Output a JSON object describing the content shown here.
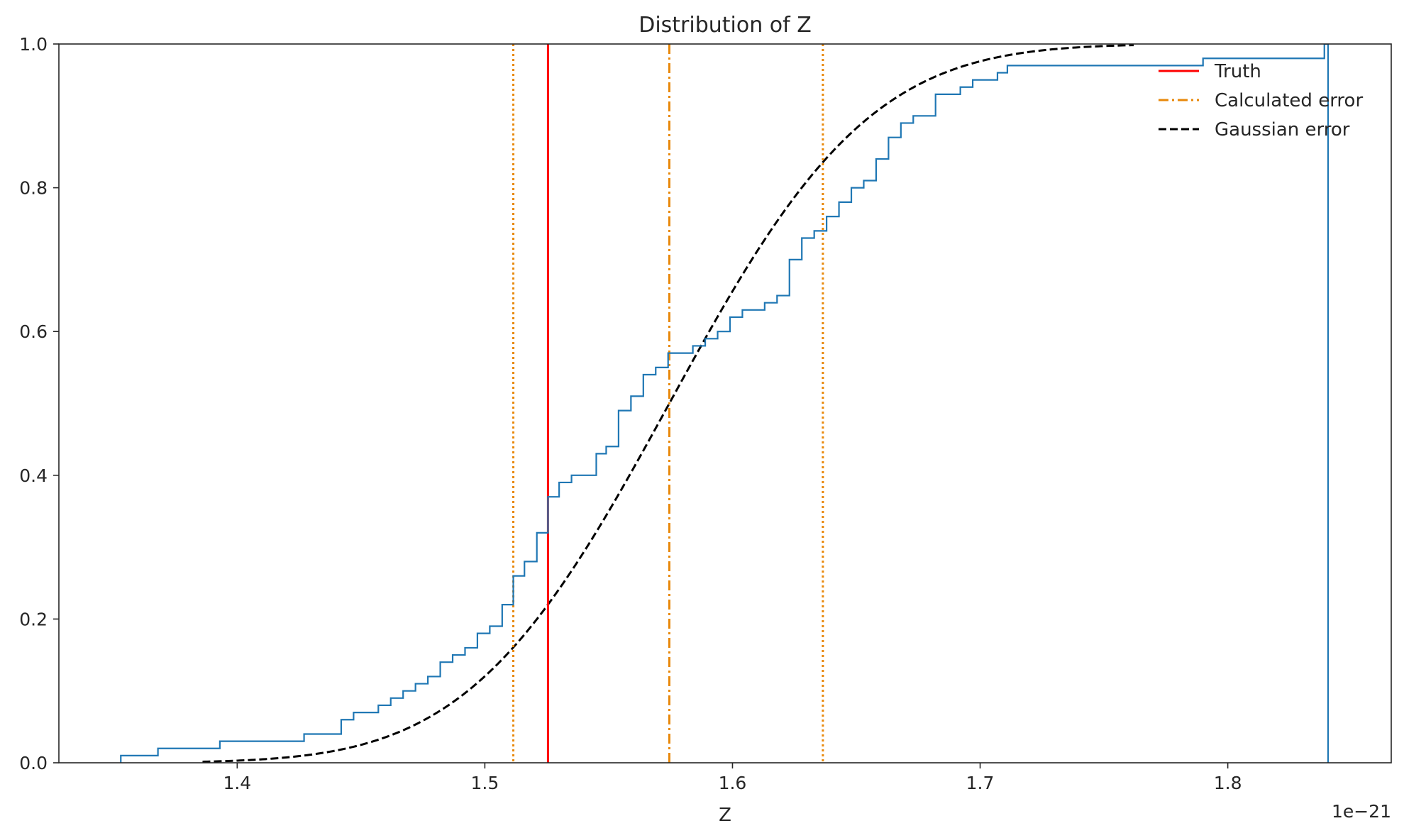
{
  "chart_data": {
    "type": "line",
    "title": "Distribution of Z",
    "xlabel": "Z",
    "ylabel": "",
    "x_offset_label": "1e−21",
    "xlim": [
      1.328,
      1.866
    ],
    "ylim": [
      0,
      1
    ],
    "xticks": [
      1.4,
      1.5,
      1.6,
      1.7,
      1.8
    ],
    "xtick_labels": [
      "1.4",
      "1.5",
      "1.6",
      "1.7",
      "1.8"
    ],
    "yticks": [
      0.0,
      0.2,
      0.4,
      0.6,
      0.8,
      1.0
    ],
    "ytick_labels": [
      "0.0",
      "0.2",
      "0.4",
      "0.6",
      "0.8",
      "1.0"
    ],
    "grid": false,
    "legend_position": "top-right",
    "legend": [
      {
        "label": "Truth",
        "color": "#ff0000",
        "style": "solid"
      },
      {
        "label": "Calculated error",
        "color": "#e8880a",
        "style": "dashdot"
      },
      {
        "label": "Gaussian error",
        "color": "#000000",
        "style": "dashed"
      }
    ],
    "truth": 1.5255,
    "calculated_mean": 1.5745,
    "calculated_interval": [
      1.5115,
      1.6365
    ],
    "gaussian_mu": 1.5745,
    "gaussian_sigma": 0.0635,
    "gaussian_x_range": [
      1.386,
      1.762
    ],
    "ecdf": {
      "color": "#1f77b4",
      "steps": [
        [
          1.353,
          0.01
        ],
        [
          1.368,
          0.02
        ],
        [
          1.393,
          0.03
        ],
        [
          1.427,
          0.04
        ],
        [
          1.442,
          0.06
        ],
        [
          1.447,
          0.07
        ],
        [
          1.457,
          0.08
        ],
        [
          1.462,
          0.09
        ],
        [
          1.467,
          0.1
        ],
        [
          1.472,
          0.11
        ],
        [
          1.477,
          0.12
        ],
        [
          1.482,
          0.14
        ],
        [
          1.487,
          0.15
        ],
        [
          1.492,
          0.16
        ],
        [
          1.497,
          0.18
        ],
        [
          1.502,
          0.19
        ],
        [
          1.507,
          0.22
        ],
        [
          1.5115,
          0.26
        ],
        [
          1.516,
          0.28
        ],
        [
          1.521,
          0.32
        ],
        [
          1.5255,
          0.37
        ],
        [
          1.53,
          0.39
        ],
        [
          1.535,
          0.4
        ],
        [
          1.545,
          0.43
        ],
        [
          1.549,
          0.44
        ],
        [
          1.554,
          0.49
        ],
        [
          1.559,
          0.51
        ],
        [
          1.564,
          0.54
        ],
        [
          1.569,
          0.55
        ],
        [
          1.574,
          0.57
        ],
        [
          1.584,
          0.58
        ],
        [
          1.589,
          0.59
        ],
        [
          1.594,
          0.6
        ],
        [
          1.599,
          0.62
        ],
        [
          1.604,
          0.63
        ],
        [
          1.613,
          0.64
        ],
        [
          1.618,
          0.65
        ],
        [
          1.623,
          0.7
        ],
        [
          1.628,
          0.73
        ],
        [
          1.633,
          0.74
        ],
        [
          1.638,
          0.76
        ],
        [
          1.643,
          0.78
        ],
        [
          1.648,
          0.8
        ],
        [
          1.653,
          0.81
        ],
        [
          1.658,
          0.84
        ],
        [
          1.663,
          0.87
        ],
        [
          1.668,
          0.89
        ],
        [
          1.673,
          0.9
        ],
        [
          1.682,
          0.93
        ],
        [
          1.692,
          0.94
        ],
        [
          1.697,
          0.95
        ],
        [
          1.707,
          0.96
        ],
        [
          1.711,
          0.97
        ],
        [
          1.79,
          0.98
        ],
        [
          1.839,
          1.0
        ]
      ],
      "final_x": 1.8405
    }
  }
}
